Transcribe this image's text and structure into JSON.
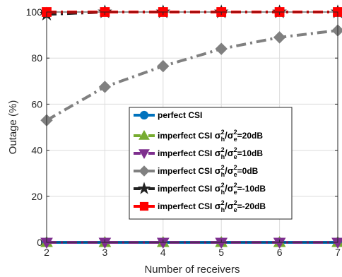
{
  "chart_data": {
    "type": "line",
    "title": "",
    "xlabel": "Number of receivers",
    "ylabel": "Outage (%)",
    "x": [
      2,
      3,
      4,
      5,
      6,
      7
    ],
    "xlim": [
      2,
      7
    ],
    "ylim": [
      0,
      100
    ],
    "xticks": [
      "2",
      "3",
      "4",
      "5",
      "6",
      "7"
    ],
    "yticks": [
      "0",
      "20",
      "40",
      "60",
      "80",
      "100"
    ],
    "grid": true,
    "legend_position": "center-right",
    "series": [
      {
        "name": "perfect CSI",
        "values": [
          0,
          0,
          0,
          0,
          0,
          0
        ],
        "color": "#0072BD",
        "marker": "circle",
        "line": "solid"
      },
      {
        "name": "imperfect CSI σh2/σe2=20dB",
        "legend_main": "imperfect CSI ",
        "sup": "2",
        "sub_h": "h",
        "sub_e": "e",
        "suffix": "=20dB",
        "values": [
          0,
          0,
          0,
          0,
          0,
          0
        ],
        "color": "#77AC30",
        "marker": "triangle-up",
        "line": "dashdot"
      },
      {
        "name": "imperfect CSI σh2/σe2=10dB",
        "legend_main": "imperfect CSI ",
        "sup": "2",
        "sub_h": "h",
        "sub_e": "e",
        "suffix": "=10dB",
        "values": [
          0,
          0,
          0,
          0,
          0,
          0
        ],
        "color": "#7E2F8E",
        "marker": "triangle-down",
        "line": "dashdot"
      },
      {
        "name": "imperfect CSI σh2/σe2=0dB",
        "legend_main": "imperfect CSI ",
        "sup": "2",
        "sub_h": "h",
        "sub_e": "e",
        "suffix": "=0dB",
        "values": [
          53,
          67.5,
          76.5,
          84,
          89,
          92
        ],
        "color": "#808080",
        "marker": "diamond",
        "line": "dashdot"
      },
      {
        "name": "imperfect CSI σh2/σe2=-10dB",
        "legend_main": "imperfect CSI ",
        "sup": "2",
        "sub_h": "h",
        "sub_e": "e",
        "suffix": "=-10dB",
        "values": [
          99,
          100,
          100,
          100,
          100,
          100
        ],
        "color": "#222222",
        "marker": "star",
        "line": "dashdot"
      },
      {
        "name": "imperfect CSI σh2/σe2=-20dB",
        "legend_main": "imperfect CSI ",
        "sup": "2",
        "sub_h": "h",
        "sub_e": "e",
        "suffix": "=-20dB",
        "values": [
          100,
          100,
          100,
          100,
          100,
          100
        ],
        "color": "#FF0000",
        "marker": "square",
        "line": "dashdot"
      }
    ]
  }
}
